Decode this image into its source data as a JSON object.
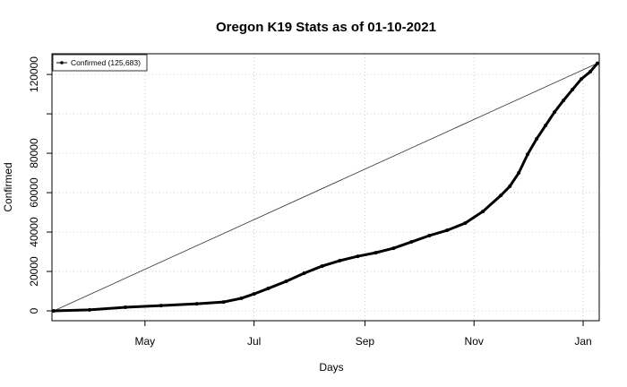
{
  "chart_data": {
    "type": "line",
    "title": "Oregon K19 Stats as of 01-10-2021",
    "x_label": "Days",
    "y_label": "Confirmed",
    "x": [
      10,
      30,
      50,
      70,
      90,
      105,
      115,
      122,
      130,
      140,
      150,
      160,
      170,
      180,
      190,
      200,
      210,
      220,
      230,
      240,
      250,
      260,
      265,
      270,
      275,
      280,
      285,
      290,
      295,
      300,
      305,
      310,
      314
    ],
    "series": [
      {
        "name": "Confirmed (125,683)",
        "color": "#000000",
        "values": [
          0,
          500,
          1800,
          2700,
          3600,
          4500,
          6400,
          8600,
          11400,
          15000,
          19100,
          22700,
          25500,
          27700,
          29500,
          31800,
          35000,
          38200,
          40900,
          44500,
          50500,
          58600,
          63200,
          70000,
          79500,
          87300,
          94100,
          100900,
          106800,
          112300,
          117700,
          121400,
          125683
        ]
      }
    ],
    "xlim": [
      9,
      315
    ],
    "xticks": [
      {
        "value": 61,
        "label": "May"
      },
      {
        "value": 122,
        "label": "Jul"
      },
      {
        "value": 184,
        "label": "Sep"
      },
      {
        "value": 245,
        "label": "Nov"
      },
      {
        "value": 306,
        "label": "Jan"
      }
    ],
    "ylim": [
      -5000,
      130500
    ],
    "yticks": [
      0,
      20000,
      40000,
      60000,
      80000,
      {
        "value": 100000,
        "label": null
      },
      120000
    ],
    "grid": true,
    "legend": "top-left"
  }
}
